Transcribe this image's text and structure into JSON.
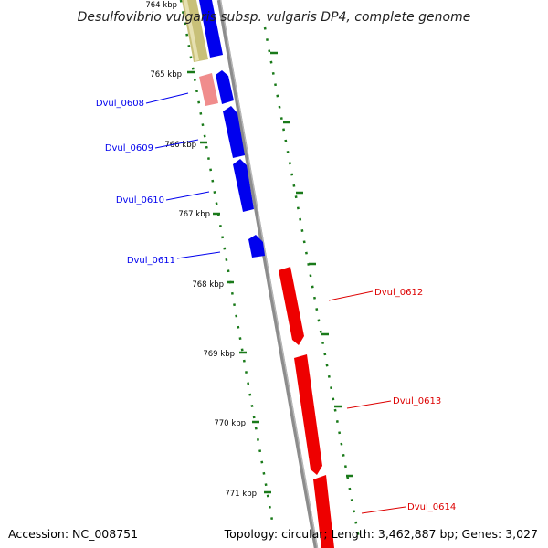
{
  "title": "Desulfovibrio vulgaris subsp. vulgaris DP4, complete genome",
  "footer": {
    "accession": "Accession: NC_008751",
    "summary": "Topology: circular; Length: 3,462,887 bp; Genes: 3,027"
  },
  "colors": {
    "forward_gene": "#0000ee",
    "reverse_gene": "#ff0000",
    "reverse_gene_light": "#f08c8c",
    "other_gene": "#c8c078",
    "backbone": "#8c8c8c",
    "tick": "#1a7a1a"
  },
  "ticks": [
    "764 kbp",
    "765 kbp",
    "766 kbp",
    "767 kbp",
    "768 kbp",
    "769 kbp",
    "770 kbp",
    "771 kbp"
  ],
  "genes": [
    {
      "locus": "Dvul_0608",
      "color": "#0000ee"
    },
    {
      "locus": "Dvul_0609",
      "color": "#0000ee"
    },
    {
      "locus": "Dvul_0610",
      "color": "#0000ee"
    },
    {
      "locus": "Dvul_0611",
      "color": "#0000ee"
    },
    {
      "locus": "Dvul_0612",
      "color": "#dd0000"
    },
    {
      "locus": "Dvul_0613",
      "color": "#dd0000"
    },
    {
      "locus": "Dvul_0614",
      "color": "#dd0000"
    }
  ]
}
